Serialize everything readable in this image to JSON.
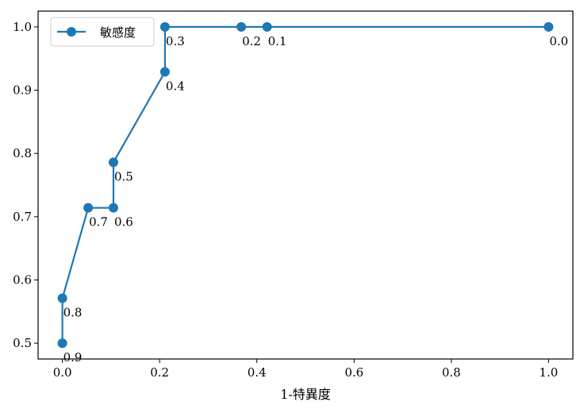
{
  "chart_data": {
    "type": "line",
    "series": [
      {
        "name": "敏感度",
        "color": "#1f77b4",
        "x": [
          0.0,
          0.0,
          0.053,
          0.105,
          0.105,
          0.211,
          0.211,
          0.368,
          0.421,
          1.0
        ],
        "y": [
          0.5,
          0.571,
          0.714,
          0.714,
          0.786,
          0.929,
          1.0,
          1.0,
          1.0,
          1.0
        ],
        "point_labels": [
          "0.9",
          "0.8",
          "0.7",
          "0.6",
          "0.5",
          "0.4",
          "0.3",
          "0.2",
          "0.1",
          "0.0"
        ]
      }
    ],
    "xlabel": "1-特異度",
    "ylabel": "",
    "xlim": [
      -0.05,
      1.05
    ],
    "ylim": [
      0.475,
      1.025
    ],
    "xticks": [
      0.0,
      0.2,
      0.4,
      0.6,
      0.8,
      1.0
    ],
    "xtick_labels": [
      "0.0",
      "0.2",
      "0.4",
      "0.6",
      "0.8",
      "1.0"
    ],
    "yticks": [
      0.5,
      0.6,
      0.7,
      0.8,
      0.9,
      1.0
    ],
    "ytick_labels": [
      "0.5",
      "0.6",
      "0.7",
      "0.8",
      "0.9",
      "1.0"
    ],
    "grid": false,
    "legend_position": "top-left"
  }
}
